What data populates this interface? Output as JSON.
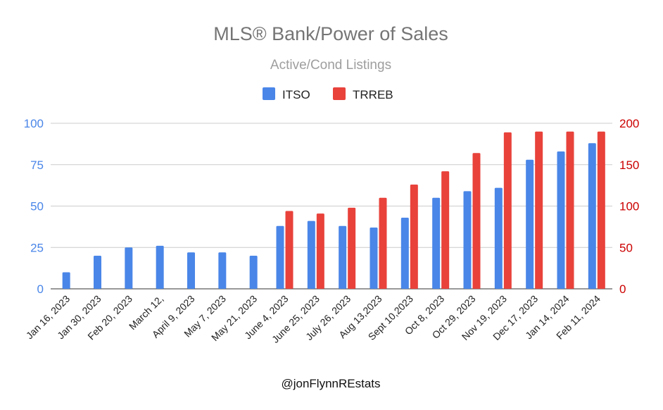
{
  "chart_data": {
    "type": "bar",
    "title": "MLS® Bank/Power of Sales",
    "subtitle": "Active/Cond Listings",
    "credit": "@jonFlynnREstats",
    "legend_position": "top-center",
    "grid": true,
    "categories": [
      "Jan 16, 2023",
      "Jan 30, 2023",
      "Feb 20, 2023",
      "March 12,",
      "April 9, 2023",
      "May 7, 2023",
      "May 21, 2023",
      "June 4, 2023",
      "June 25, 2023",
      "July 26, 2023",
      "Aug 13,2023",
      "Sept 10,2023",
      "Oct 8, 2023",
      "Oct 29, 2023",
      "Nov 19, 2023",
      "Dec 17, 2023",
      "Jan 14, 2024",
      "Feb 11, 2024"
    ],
    "y_left": {
      "ylim": [
        0,
        100
      ],
      "ticks": [
        0,
        25,
        50,
        75,
        100
      ]
    },
    "y_right": {
      "ylim": [
        0,
        200
      ],
      "ticks": [
        0,
        50,
        100,
        150,
        200
      ]
    },
    "series": [
      {
        "name": "ITSO",
        "color": "#4a86e8",
        "axis": "left",
        "values": [
          10,
          20,
          25,
          26,
          22,
          22,
          20,
          38,
          41,
          38,
          37,
          43,
          55,
          59,
          61,
          78,
          83,
          88
        ]
      },
      {
        "name": "TRREB",
        "color": "#e8423b",
        "axis": "right",
        "values": [
          null,
          null,
          null,
          null,
          null,
          null,
          null,
          94,
          91,
          98,
          110,
          126,
          142,
          164,
          189,
          190,
          190,
          190
        ]
      }
    ]
  }
}
